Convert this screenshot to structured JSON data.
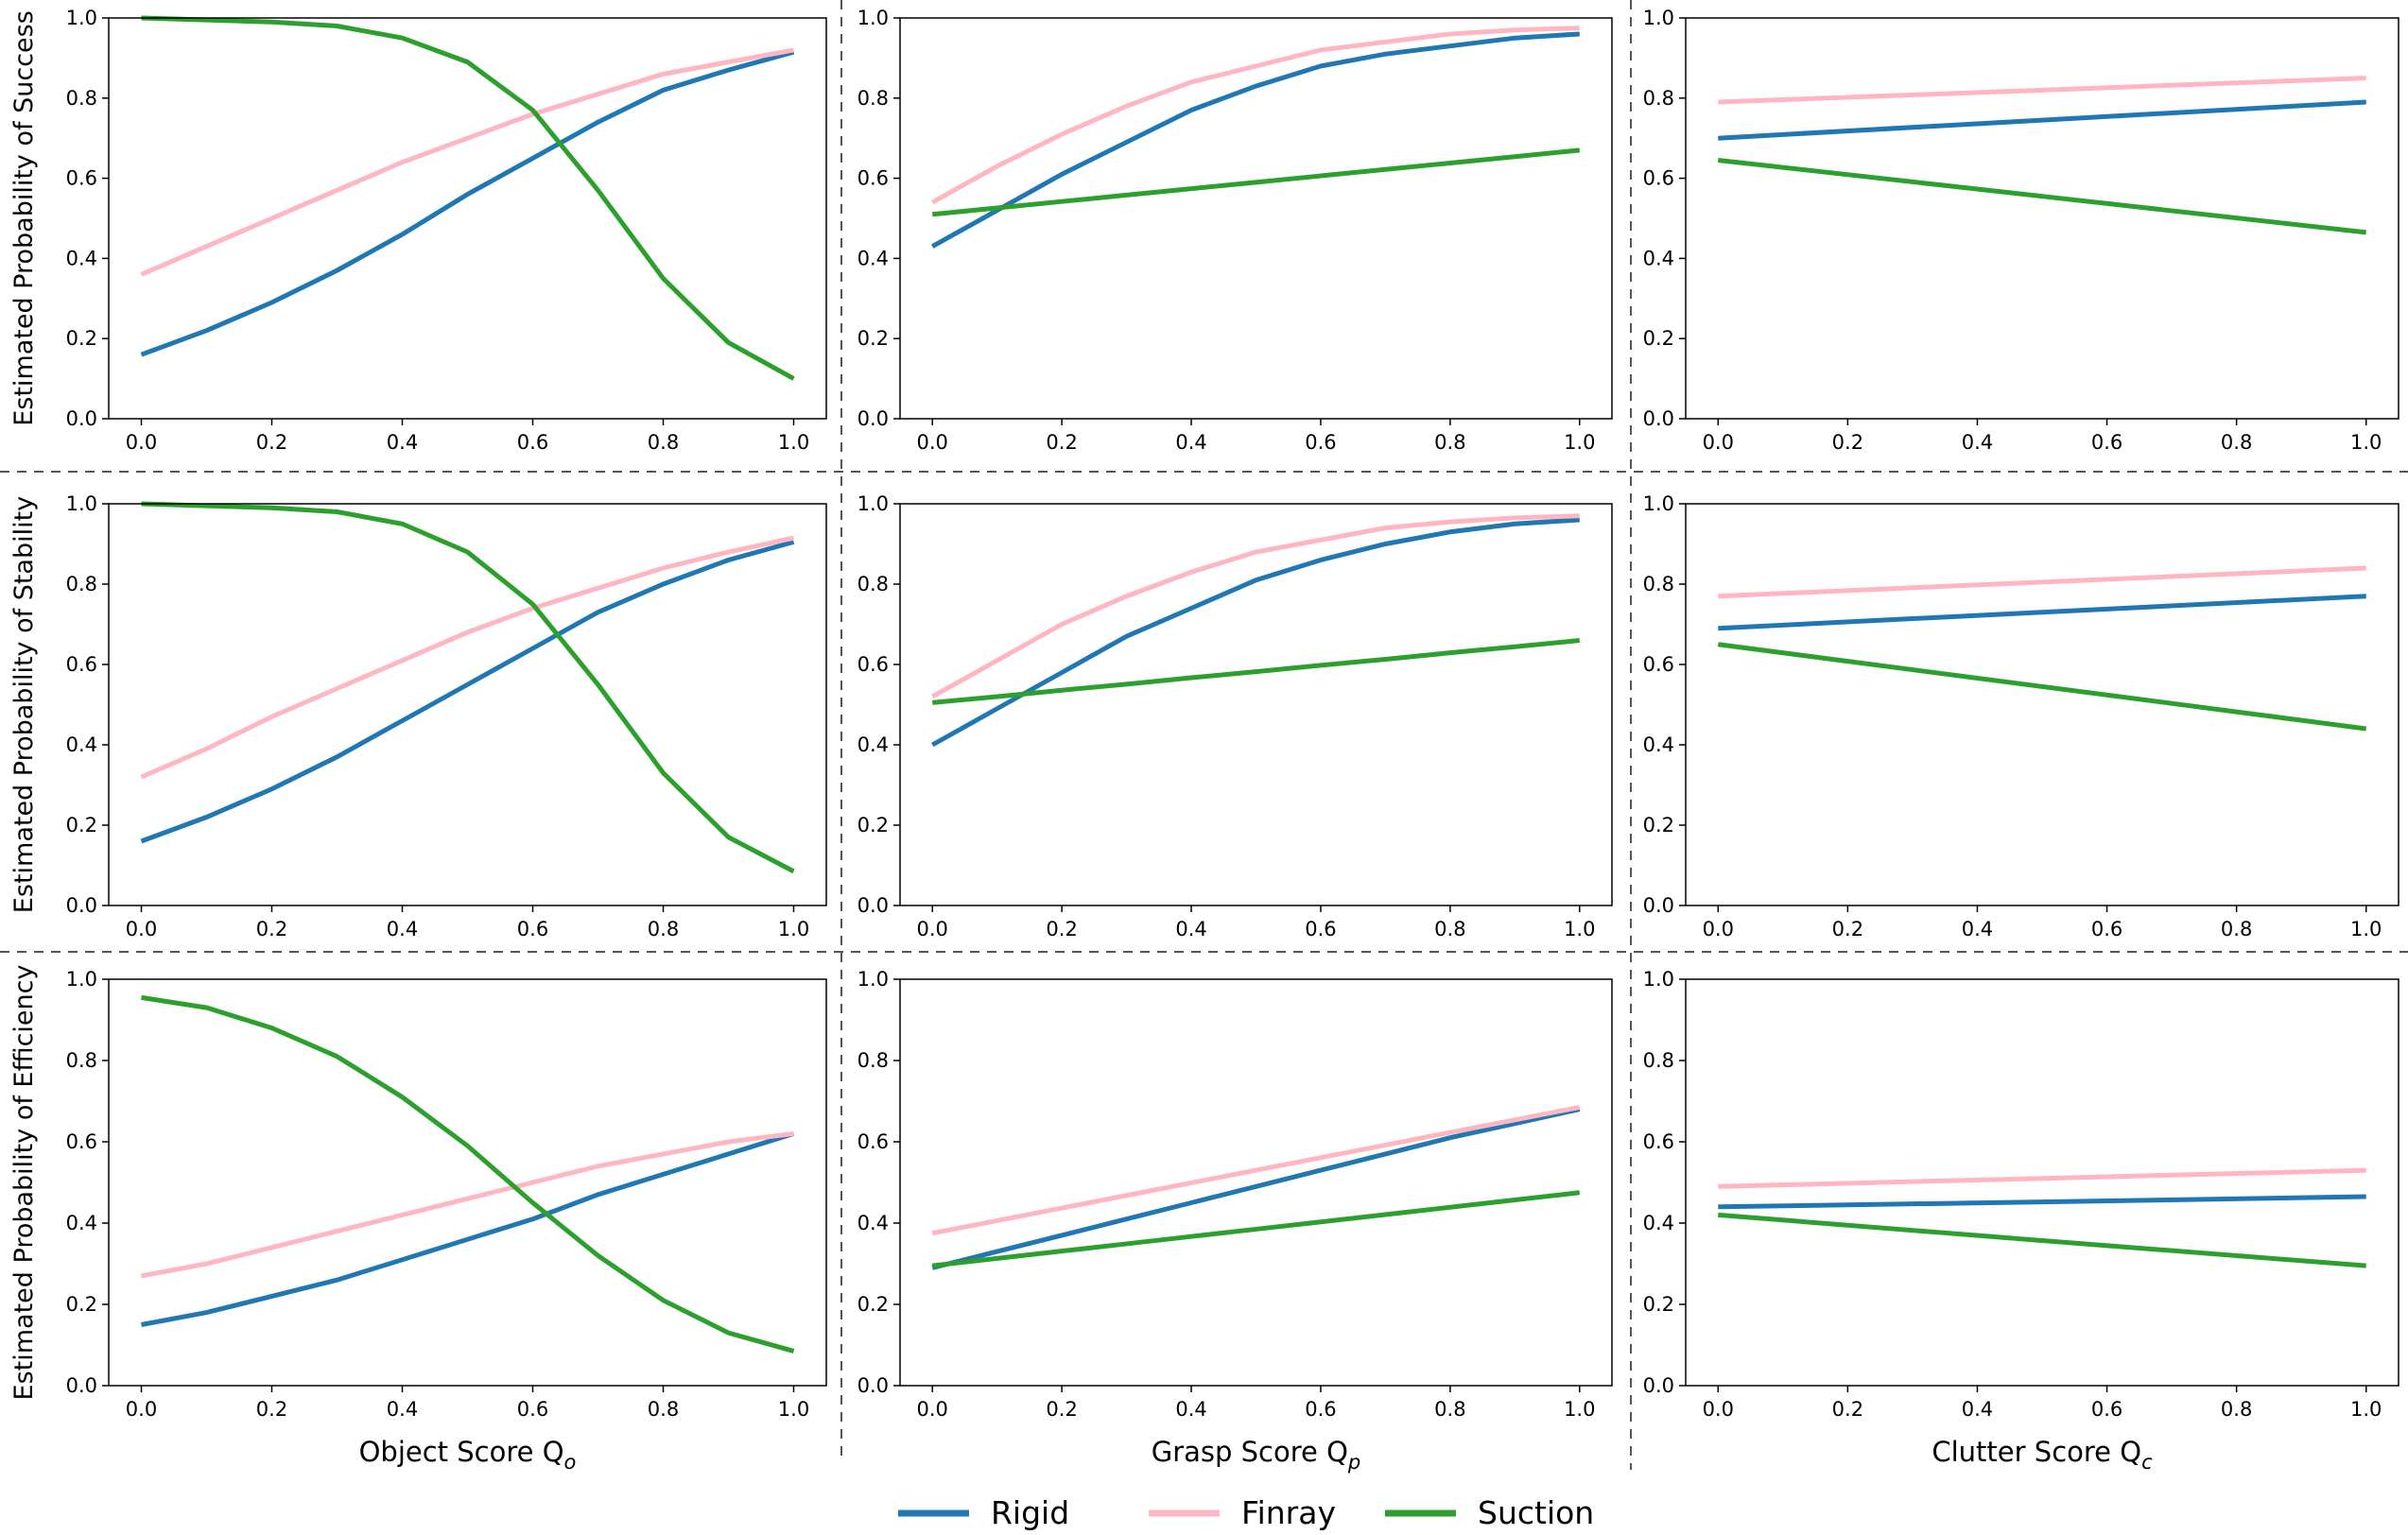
{
  "chart_data": [
    {
      "type": "line",
      "ylabel": "Estimated Probability of Success",
      "x": [
        0,
        0.1,
        0.2,
        0.3,
        0.4,
        0.5,
        0.6,
        0.7,
        0.8,
        0.9,
        1
      ],
      "xlim": [
        -0.05,
        1.05
      ],
      "ylim": [
        0,
        1
      ],
      "xticks": [
        {
          "value": 0,
          "label": "0.0"
        },
        {
          "value": 0.2,
          "label": "0.2"
        },
        {
          "value": 0.4,
          "label": "0.4"
        },
        {
          "value": 0.6,
          "label": "0.6"
        },
        {
          "value": 0.8,
          "label": "0.8"
        },
        {
          "value": 1,
          "label": "1.0"
        }
      ],
      "yticks": [
        {
          "value": 0,
          "label": "0.0"
        },
        {
          "value": 0.2,
          "label": "0.2"
        },
        {
          "value": 0.4,
          "label": "0.4"
        },
        {
          "value": 0.6,
          "label": "0.6"
        },
        {
          "value": 0.8,
          "label": "0.8"
        },
        {
          "value": 1,
          "label": "1.0"
        }
      ],
      "series": [
        {
          "name": "Rigid",
          "color": "#1f77b4",
          "values": [
            0.16,
            0.22,
            0.29,
            0.37,
            0.46,
            0.56,
            0.65,
            0.74,
            0.82,
            0.87,
            0.915
          ]
        },
        {
          "name": "Finray",
          "color": "#ffb6c1",
          "values": [
            0.36,
            0.43,
            0.5,
            0.57,
            0.64,
            0.7,
            0.76,
            0.81,
            0.86,
            0.89,
            0.92
          ]
        },
        {
          "name": "Suction",
          "color": "#2ca02c",
          "values": [
            1.0,
            0.995,
            0.99,
            0.98,
            0.95,
            0.89,
            0.77,
            0.57,
            0.35,
            0.19,
            0.1
          ]
        }
      ]
    },
    {
      "type": "line",
      "x": [
        0,
        0.1,
        0.2,
        0.3,
        0.4,
        0.5,
        0.6,
        0.7,
        0.8,
        0.9,
        1
      ],
      "xlim": [
        -0.05,
        1.05
      ],
      "ylim": [
        0,
        1
      ],
      "xticks": [
        {
          "value": 0,
          "label": "0.0"
        },
        {
          "value": 0.2,
          "label": "0.2"
        },
        {
          "value": 0.4,
          "label": "0.4"
        },
        {
          "value": 0.6,
          "label": "0.6"
        },
        {
          "value": 0.8,
          "label": "0.8"
        },
        {
          "value": 1,
          "label": "1.0"
        }
      ],
      "yticks": [
        {
          "value": 0,
          "label": "0.0"
        },
        {
          "value": 0.2,
          "label": "0.2"
        },
        {
          "value": 0.4,
          "label": "0.4"
        },
        {
          "value": 0.6,
          "label": "0.6"
        },
        {
          "value": 0.8,
          "label": "0.8"
        },
        {
          "value": 1,
          "label": "1.0"
        }
      ],
      "series": [
        {
          "name": "Rigid",
          "color": "#1f77b4",
          "values": [
            0.43,
            0.52,
            0.61,
            0.69,
            0.77,
            0.83,
            0.88,
            0.91,
            0.93,
            0.95,
            0.96
          ]
        },
        {
          "name": "Finray",
          "color": "#ffb6c1",
          "values": [
            0.54,
            0.63,
            0.71,
            0.78,
            0.84,
            0.88,
            0.92,
            0.94,
            0.96,
            0.97,
            0.975
          ]
        },
        {
          "name": "Suction",
          "color": "#2ca02c",
          "values": [
            0.51,
            0.526,
            0.542,
            0.558,
            0.574,
            0.59,
            0.606,
            0.622,
            0.638,
            0.654,
            0.67
          ]
        }
      ]
    },
    {
      "type": "line",
      "x": [
        0,
        0.5,
        1
      ],
      "xlim": [
        -0.05,
        1.05
      ],
      "ylim": [
        0,
        1
      ],
      "xticks": [
        {
          "value": 0,
          "label": "0.0"
        },
        {
          "value": 0.2,
          "label": "0.2"
        },
        {
          "value": 0.4,
          "label": "0.4"
        },
        {
          "value": 0.6,
          "label": "0.6"
        },
        {
          "value": 0.8,
          "label": "0.8"
        },
        {
          "value": 1,
          "label": "1.0"
        }
      ],
      "yticks": [
        {
          "value": 0,
          "label": "0.0"
        },
        {
          "value": 0.2,
          "label": "0.2"
        },
        {
          "value": 0.4,
          "label": "0.4"
        },
        {
          "value": 0.6,
          "label": "0.6"
        },
        {
          "value": 0.8,
          "label": "0.8"
        },
        {
          "value": 1,
          "label": "1.0"
        }
      ],
      "series": [
        {
          "name": "Rigid",
          "color": "#1f77b4",
          "values": [
            0.7,
            0.745,
            0.79
          ]
        },
        {
          "name": "Finray",
          "color": "#ffb6c1",
          "values": [
            0.79,
            0.82,
            0.85
          ]
        },
        {
          "name": "Suction",
          "color": "#2ca02c",
          "values": [
            0.645,
            0.555,
            0.465
          ]
        }
      ]
    },
    {
      "type": "line",
      "ylabel": "Estimated Probability of Stability",
      "x": [
        0,
        0.1,
        0.2,
        0.3,
        0.4,
        0.5,
        0.6,
        0.7,
        0.8,
        0.9,
        1
      ],
      "xlim": [
        -0.05,
        1.05
      ],
      "ylim": [
        0,
        1
      ],
      "xticks": [
        {
          "value": 0,
          "label": "0.0"
        },
        {
          "value": 0.2,
          "label": "0.2"
        },
        {
          "value": 0.4,
          "label": "0.4"
        },
        {
          "value": 0.6,
          "label": "0.6"
        },
        {
          "value": 0.8,
          "label": "0.8"
        },
        {
          "value": 1,
          "label": "1.0"
        }
      ],
      "yticks": [
        {
          "value": 0,
          "label": "0.0"
        },
        {
          "value": 0.2,
          "label": "0.2"
        },
        {
          "value": 0.4,
          "label": "0.4"
        },
        {
          "value": 0.6,
          "label": "0.6"
        },
        {
          "value": 0.8,
          "label": "0.8"
        },
        {
          "value": 1,
          "label": "1.0"
        }
      ],
      "series": [
        {
          "name": "Rigid",
          "color": "#1f77b4",
          "values": [
            0.16,
            0.22,
            0.29,
            0.37,
            0.46,
            0.55,
            0.64,
            0.73,
            0.8,
            0.86,
            0.905
          ]
        },
        {
          "name": "Finray",
          "color": "#ffb6c1",
          "values": [
            0.32,
            0.39,
            0.47,
            0.54,
            0.61,
            0.68,
            0.74,
            0.79,
            0.84,
            0.88,
            0.915
          ]
        },
        {
          "name": "Suction",
          "color": "#2ca02c",
          "values": [
            1.0,
            0.995,
            0.99,
            0.98,
            0.95,
            0.88,
            0.75,
            0.55,
            0.33,
            0.17,
            0.085
          ]
        }
      ]
    },
    {
      "type": "line",
      "x": [
        0,
        0.1,
        0.2,
        0.3,
        0.4,
        0.5,
        0.6,
        0.7,
        0.8,
        0.9,
        1
      ],
      "xlim": [
        -0.05,
        1.05
      ],
      "ylim": [
        0,
        1
      ],
      "xticks": [
        {
          "value": 0,
          "label": "0.0"
        },
        {
          "value": 0.2,
          "label": "0.2"
        },
        {
          "value": 0.4,
          "label": "0.4"
        },
        {
          "value": 0.6,
          "label": "0.6"
        },
        {
          "value": 0.8,
          "label": "0.8"
        },
        {
          "value": 1,
          "label": "1.0"
        }
      ],
      "yticks": [
        {
          "value": 0,
          "label": "0.0"
        },
        {
          "value": 0.2,
          "label": "0.2"
        },
        {
          "value": 0.4,
          "label": "0.4"
        },
        {
          "value": 0.6,
          "label": "0.6"
        },
        {
          "value": 0.8,
          "label": "0.8"
        },
        {
          "value": 1,
          "label": "1.0"
        }
      ],
      "series": [
        {
          "name": "Rigid",
          "color": "#1f77b4",
          "values": [
            0.4,
            0.49,
            0.58,
            0.67,
            0.74,
            0.81,
            0.86,
            0.9,
            0.93,
            0.95,
            0.96
          ]
        },
        {
          "name": "Finray",
          "color": "#ffb6c1",
          "values": [
            0.52,
            0.61,
            0.7,
            0.77,
            0.83,
            0.88,
            0.91,
            0.94,
            0.955,
            0.965,
            0.97
          ]
        },
        {
          "name": "Suction",
          "color": "#2ca02c",
          "values": [
            0.505,
            0.52,
            0.536,
            0.551,
            0.567,
            0.582,
            0.598,
            0.613,
            0.629,
            0.644,
            0.66
          ]
        }
      ]
    },
    {
      "type": "line",
      "x": [
        0,
        0.5,
        1
      ],
      "xlim": [
        -0.05,
        1.05
      ],
      "ylim": [
        0,
        1
      ],
      "xticks": [
        {
          "value": 0,
          "label": "0.0"
        },
        {
          "value": 0.2,
          "label": "0.2"
        },
        {
          "value": 0.4,
          "label": "0.4"
        },
        {
          "value": 0.6,
          "label": "0.6"
        },
        {
          "value": 0.8,
          "label": "0.8"
        },
        {
          "value": 1,
          "label": "1.0"
        }
      ],
      "yticks": [
        {
          "value": 0,
          "label": "0.0"
        },
        {
          "value": 0.2,
          "label": "0.2"
        },
        {
          "value": 0.4,
          "label": "0.4"
        },
        {
          "value": 0.6,
          "label": "0.6"
        },
        {
          "value": 0.8,
          "label": "0.8"
        },
        {
          "value": 1,
          "label": "1.0"
        }
      ],
      "series": [
        {
          "name": "Rigid",
          "color": "#1f77b4",
          "values": [
            0.69,
            0.73,
            0.77
          ]
        },
        {
          "name": "Finray",
          "color": "#ffb6c1",
          "values": [
            0.77,
            0.805,
            0.84
          ]
        },
        {
          "name": "Suction",
          "color": "#2ca02c",
          "values": [
            0.65,
            0.545,
            0.44
          ]
        }
      ]
    },
    {
      "type": "line",
      "ylabel": "Estimated Probability of Efficiency",
      "xlabel": "Object Score Q",
      "xlabel_subscript": "o",
      "x": [
        0,
        0.1,
        0.2,
        0.3,
        0.4,
        0.5,
        0.6,
        0.7,
        0.8,
        0.9,
        1
      ],
      "xlim": [
        -0.05,
        1.05
      ],
      "ylim": [
        0,
        1
      ],
      "xticks": [
        {
          "value": 0,
          "label": "0.0"
        },
        {
          "value": 0.2,
          "label": "0.2"
        },
        {
          "value": 0.4,
          "label": "0.4"
        },
        {
          "value": 0.6,
          "label": "0.6"
        },
        {
          "value": 0.8,
          "label": "0.8"
        },
        {
          "value": 1,
          "label": "1.0"
        }
      ],
      "yticks": [
        {
          "value": 0,
          "label": "0.0"
        },
        {
          "value": 0.2,
          "label": "0.2"
        },
        {
          "value": 0.4,
          "label": "0.4"
        },
        {
          "value": 0.6,
          "label": "0.6"
        },
        {
          "value": 0.8,
          "label": "0.8"
        },
        {
          "value": 1,
          "label": "1.0"
        }
      ],
      "series": [
        {
          "name": "Rigid",
          "color": "#1f77b4",
          "values": [
            0.15,
            0.18,
            0.22,
            0.26,
            0.31,
            0.36,
            0.41,
            0.47,
            0.52,
            0.57,
            0.62
          ]
        },
        {
          "name": "Finray",
          "color": "#ffb6c1",
          "values": [
            0.27,
            0.3,
            0.34,
            0.38,
            0.42,
            0.46,
            0.5,
            0.54,
            0.57,
            0.6,
            0.62
          ]
        },
        {
          "name": "Suction",
          "color": "#2ca02c",
          "values": [
            0.955,
            0.93,
            0.88,
            0.81,
            0.71,
            0.59,
            0.45,
            0.32,
            0.21,
            0.13,
            0.085
          ]
        }
      ]
    },
    {
      "type": "line",
      "xlabel": "Grasp Score Q",
      "xlabel_subscript": "p",
      "x": [
        0,
        0.1,
        0.2,
        0.3,
        0.4,
        0.5,
        0.6,
        0.7,
        0.8,
        0.9,
        1
      ],
      "xlim": [
        -0.05,
        1.05
      ],
      "ylim": [
        0,
        1
      ],
      "xticks": [
        {
          "value": 0,
          "label": "0.0"
        },
        {
          "value": 0.2,
          "label": "0.2"
        },
        {
          "value": 0.4,
          "label": "0.4"
        },
        {
          "value": 0.6,
          "label": "0.6"
        },
        {
          "value": 0.8,
          "label": "0.8"
        },
        {
          "value": 1,
          "label": "1.0"
        }
      ],
      "yticks": [
        {
          "value": 0,
          "label": "0.0"
        },
        {
          "value": 0.2,
          "label": "0.2"
        },
        {
          "value": 0.4,
          "label": "0.4"
        },
        {
          "value": 0.6,
          "label": "0.6"
        },
        {
          "value": 0.8,
          "label": "0.8"
        },
        {
          "value": 1,
          "label": "1.0"
        }
      ],
      "series": [
        {
          "name": "Rigid",
          "color": "#1f77b4",
          "values": [
            0.29,
            0.33,
            0.37,
            0.41,
            0.45,
            0.49,
            0.53,
            0.57,
            0.61,
            0.645,
            0.68
          ]
        },
        {
          "name": "Finray",
          "color": "#ffb6c1",
          "values": [
            0.375,
            0.406,
            0.437,
            0.468,
            0.499,
            0.53,
            0.561,
            0.592,
            0.623,
            0.654,
            0.685
          ]
        },
        {
          "name": "Suction",
          "color": "#2ca02c",
          "values": [
            0.295,
            0.313,
            0.331,
            0.349,
            0.367,
            0.385,
            0.403,
            0.421,
            0.439,
            0.457,
            0.475
          ]
        }
      ]
    },
    {
      "type": "line",
      "xlabel": "Clutter Score Q",
      "xlabel_subscript": "c",
      "x": [
        0,
        0.5,
        1
      ],
      "xlim": [
        -0.05,
        1.05
      ],
      "ylim": [
        0,
        1
      ],
      "xticks": [
        {
          "value": 0,
          "label": "0.0"
        },
        {
          "value": 0.2,
          "label": "0.2"
        },
        {
          "value": 0.4,
          "label": "0.4"
        },
        {
          "value": 0.6,
          "label": "0.6"
        },
        {
          "value": 0.8,
          "label": "0.8"
        },
        {
          "value": 1,
          "label": "1.0"
        }
      ],
      "yticks": [
        {
          "value": 0,
          "label": "0.0"
        },
        {
          "value": 0.2,
          "label": "0.2"
        },
        {
          "value": 0.4,
          "label": "0.4"
        },
        {
          "value": 0.6,
          "label": "0.6"
        },
        {
          "value": 0.8,
          "label": "0.8"
        },
        {
          "value": 1,
          "label": "1.0"
        }
      ],
      "series": [
        {
          "name": "Rigid",
          "color": "#1f77b4",
          "values": [
            0.44,
            0.452,
            0.465
          ]
        },
        {
          "name": "Finray",
          "color": "#ffb6c1",
          "values": [
            0.49,
            0.51,
            0.53
          ]
        },
        {
          "name": "Suction",
          "color": "#2ca02c",
          "values": [
            0.42,
            0.357,
            0.295
          ]
        }
      ]
    }
  ]
}
